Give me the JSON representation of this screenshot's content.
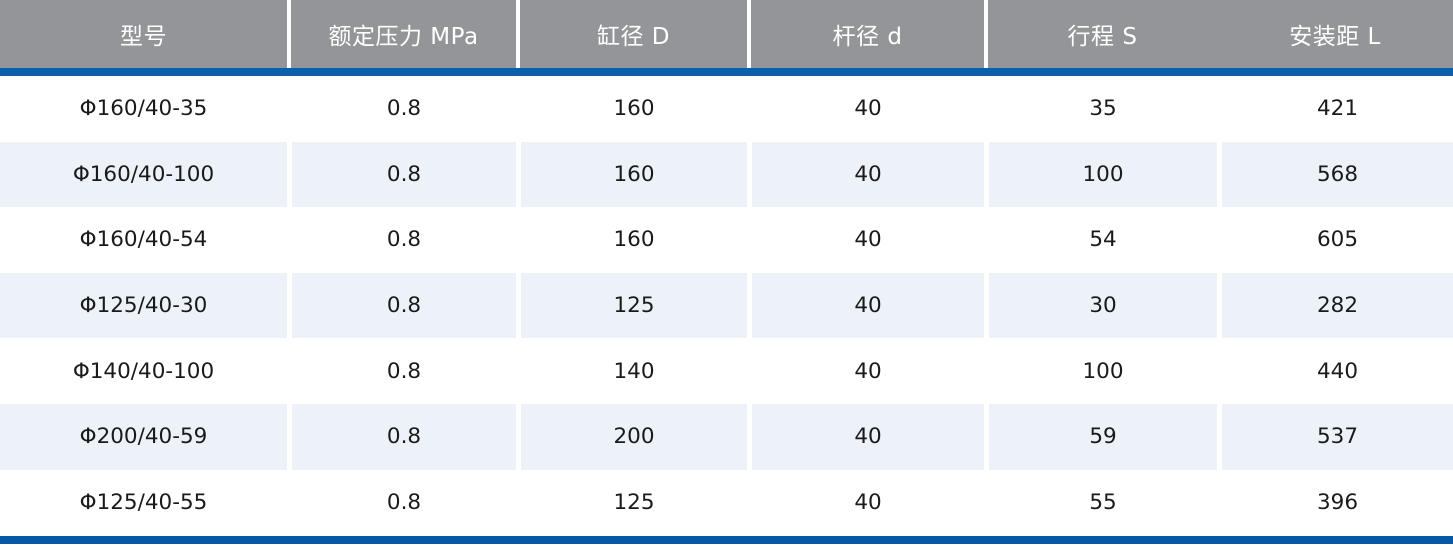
{
  "table": {
    "columns": [
      {
        "label": "型号"
      },
      {
        "label": "额定压力 MPa"
      },
      {
        "label": "缸径 D"
      },
      {
        "label": "杆径 d"
      },
      {
        "label": "行程 S"
      },
      {
        "label": "安装距 L"
      }
    ],
    "rows": [
      [
        "Φ160/40-35",
        "0.8",
        "160",
        "40",
        "35",
        "421"
      ],
      [
        "Φ160/40-100",
        "0.8",
        "160",
        "40",
        "100",
        "568"
      ],
      [
        "Φ160/40-54",
        "0.8",
        "160",
        "40",
        "54",
        "605"
      ],
      [
        "Φ125/40-30",
        "0.8",
        "125",
        "40",
        "30",
        "282"
      ],
      [
        "Φ140/40-100",
        "0.8",
        "140",
        "40",
        "100",
        "440"
      ],
      [
        "Φ200/40-59",
        "0.8",
        "200",
        "40",
        "59",
        "537"
      ],
      [
        "Φ125/40-55",
        "0.8",
        "125",
        "40",
        "55",
        "396"
      ]
    ]
  },
  "colors": {
    "header_bg": "#939598",
    "header_text": "#ffffff",
    "top_accent_bar": "#0e5fa9",
    "bottom_accent_bar": "#0859a5",
    "row_alt_bg": "#edf1f8",
    "row_bg": "#ffffff",
    "body_text": "#1a1a1a"
  }
}
